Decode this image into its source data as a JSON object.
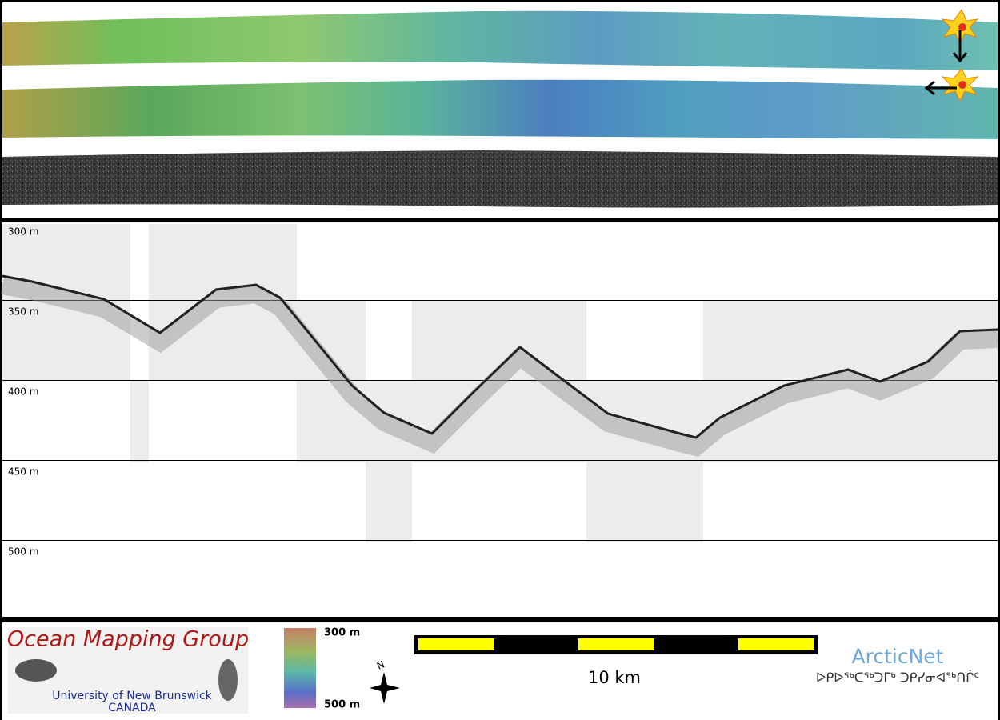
{
  "profile": {
    "depth_labels": [
      "300 m",
      "350 m",
      "400 m",
      "450 m",
      "500 m"
    ]
  },
  "legend": {
    "colorbar_top": "300 m",
    "colorbar_bottom": "500 m",
    "scale_bar": "10 km",
    "north": "N"
  },
  "logo_left": {
    "title": "Ocean Mapping Group",
    "line1": "University of New Brunswick",
    "line2": "CANADA"
  },
  "logo_right": {
    "title": "ArcticNet",
    "subtitle": "ᐅᑭᐅᖅᑕᖅᑐᒥᒃ ᑐᑭᓯᓂᐊᖅᑎᒌᑦ"
  }
}
